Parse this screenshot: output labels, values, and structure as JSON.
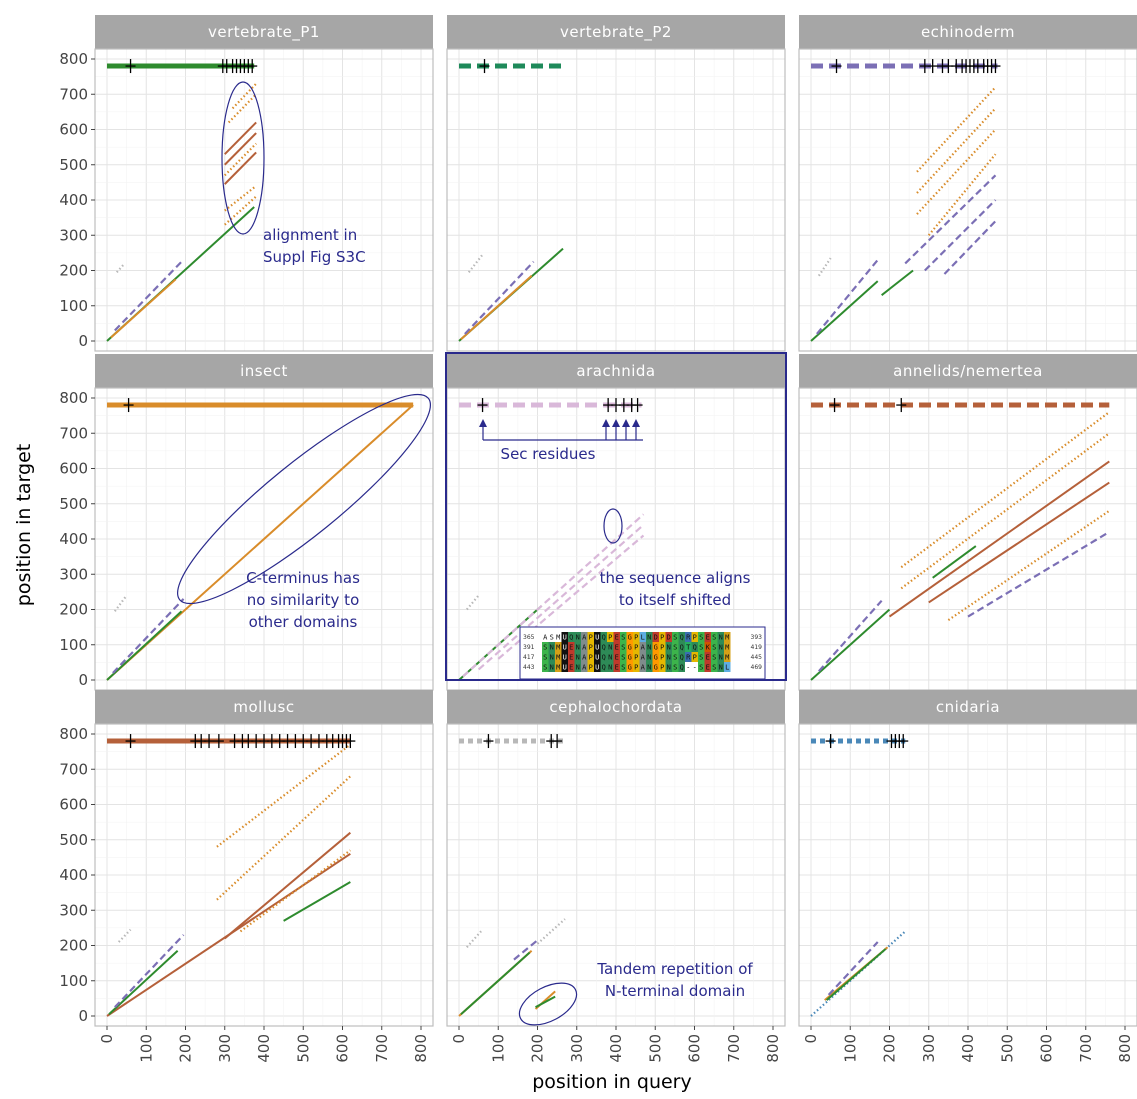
{
  "figure": {
    "xlabel": "position in query",
    "ylabel": "position in target"
  },
  "chart_data": {
    "type": "scatter",
    "description_of_marks": "dot-plot of local alignment segments (diagonal lines) of query vs target positions; row of dashed segment at top (y≈780) shows target protein with + marks for Sec residues",
    "xlim": [
      0,
      800
    ],
    "ylim": [
      0,
      800
    ],
    "x_ticks": [
      "0",
      "100",
      "200",
      "300",
      "400",
      "500",
      "600",
      "700",
      "800"
    ],
    "y_ticks": [
      "0",
      "100",
      "200",
      "300",
      "400",
      "500",
      "600",
      "700",
      "800"
    ],
    "grid": true,
    "colors": {
      "green": "#2e8b2e",
      "orange": "#d98c2a",
      "brown": "#b5603a",
      "purple": "#7b6fb5",
      "lightpurple": "#d9b8d9",
      "gray": "#b8b8b8",
      "blue": "#4a88b8",
      "darkgreen": "#1e8a5a",
      "annotation": "#2a2a8c",
      "strip": "#a6a6a6"
    },
    "panels": [
      {
        "name": "vertebrate_P1",
        "bar": {
          "x": [
            0,
            375
          ],
          "y": 780,
          "color": "green",
          "dash": "solid"
        },
        "sec_marks": [
          60,
          295,
          305,
          320,
          330,
          340,
          350,
          360,
          370
        ],
        "segments": [
          {
            "x": [
              0,
              375
            ],
            "y": [
              0,
              380
            ],
            "color": "green",
            "dash": "solid"
          },
          {
            "x": [
              10,
              175
            ],
            "y": [
              10,
              175
            ],
            "color": "orange",
            "dash": "solid"
          },
          {
            "x": [
              20,
              190
            ],
            "y": [
              30,
              225
            ],
            "color": "purple",
            "dash": "dashed"
          },
          {
            "x": [
              25,
              45
            ],
            "y": [
              195,
              220
            ],
            "color": "gray",
            "dash": "dotted"
          },
          {
            "x": [
              300,
              380
            ],
            "y": [
              330,
              410
            ],
            "color": "orange",
            "dash": "dotted"
          },
          {
            "x": [
              300,
              380
            ],
            "y": [
              370,
              440
            ],
            "color": "orange",
            "dash": "dotted"
          },
          {
            "x": [
              300,
              380
            ],
            "y": [
              445,
              535
            ],
            "color": "brown",
            "dash": "solid"
          },
          {
            "x": [
              300,
              380
            ],
            "y": [
              530,
              620
            ],
            "color": "brown",
            "dash": "solid"
          },
          {
            "x": [
              300,
              380
            ],
            "y": [
              500,
              590
            ],
            "color": "brown",
            "dash": "solid"
          },
          {
            "x": [
              300,
              380
            ],
            "y": [
              470,
              560
            ],
            "color": "orange",
            "dash": "dotted"
          },
          {
            "x": [
              310,
              380
            ],
            "y": [
              620,
              700
            ],
            "color": "orange",
            "dash": "dotted"
          },
          {
            "x": [
              320,
              380
            ],
            "y": [
              660,
              730
            ],
            "color": "orange",
            "dash": "dotted"
          }
        ]
      },
      {
        "name": "vertebrate_P2",
        "bar": {
          "x": [
            0,
            265
          ],
          "y": 780,
          "color": "darkgreen",
          "dash": "dashed"
        },
        "sec_marks": [
          65
        ],
        "segments": [
          {
            "x": [
              0,
              265
            ],
            "y": [
              0,
              262
            ],
            "color": "green",
            "dash": "solid"
          },
          {
            "x": [
              5,
              185
            ],
            "y": [
              5,
              185
            ],
            "color": "orange",
            "dash": "solid"
          },
          {
            "x": [
              15,
              190
            ],
            "y": [
              20,
              225
            ],
            "color": "purple",
            "dash": "dashed"
          },
          {
            "x": [
              25,
              60
            ],
            "y": [
              195,
              245
            ],
            "color": "gray",
            "dash": "dotted"
          }
        ]
      },
      {
        "name": "echinoderm",
        "bar": {
          "x": [
            0,
            475
          ],
          "y": 780,
          "color": "purple",
          "dash": "dashed"
        },
        "sec_marks": [
          65,
          290,
          310,
          335,
          350,
          370,
          385,
          395,
          405,
          415,
          425,
          440,
          450,
          460,
          470
        ],
        "segments": [
          {
            "x": [
              0,
              170
            ],
            "y": [
              0,
              170
            ],
            "color": "green",
            "dash": "solid"
          },
          {
            "x": [
              180,
              260
            ],
            "y": [
              130,
              200
            ],
            "color": "green",
            "dash": "solid"
          },
          {
            "x": [
              15,
              170
            ],
            "y": [
              20,
              230
            ],
            "color": "purple",
            "dash": "dashed"
          },
          {
            "x": [
              20,
              50
            ],
            "y": [
              185,
              235
            ],
            "color": "gray",
            "dash": "dotted"
          },
          {
            "x": [
              240,
              470
            ],
            "y": [
              220,
              470
            ],
            "color": "purple",
            "dash": "dashed"
          },
          {
            "x": [
              290,
              470
            ],
            "y": [
              200,
              400
            ],
            "color": "purple",
            "dash": "dashed"
          },
          {
            "x": [
              340,
              470
            ],
            "y": [
              190,
              340
            ],
            "color": "purple",
            "dash": "dashed"
          },
          {
            "x": [
              270,
              470
            ],
            "y": [
              480,
              720
            ],
            "color": "orange",
            "dash": "dotted"
          },
          {
            "x": [
              270,
              470
            ],
            "y": [
              420,
              660
            ],
            "color": "orange",
            "dash": "dotted"
          },
          {
            "x": [
              270,
              470
            ],
            "y": [
              360,
              600
            ],
            "color": "orange",
            "dash": "dotted"
          },
          {
            "x": [
              300,
              470
            ],
            "y": [
              300,
              530
            ],
            "color": "orange",
            "dash": "dotted"
          }
        ]
      },
      {
        "name": "insect",
        "bar": {
          "x": [
            0,
            780
          ],
          "y": 780,
          "color": "orange",
          "dash": "solid"
        },
        "sec_marks": [
          55
        ],
        "segments": [
          {
            "x": [
              0,
              780
            ],
            "y": [
              0,
              780
            ],
            "color": "orange",
            "dash": "solid"
          },
          {
            "x": [
              0,
              190
            ],
            "y": [
              0,
              195
            ],
            "color": "green",
            "dash": "solid"
          },
          {
            "x": [
              15,
              195
            ],
            "y": [
              20,
              230
            ],
            "color": "purple",
            "dash": "dashed"
          },
          {
            "x": [
              20,
              50
            ],
            "y": [
              195,
              240
            ],
            "color": "gray",
            "dash": "dotted"
          }
        ]
      },
      {
        "name": "arachnida",
        "bar": {
          "x": [
            0,
            465
          ],
          "y": 780,
          "color": "lightpurple",
          "dash": "dashed"
        },
        "sec_marks": [
          60,
          380,
          400,
          420,
          440,
          455
        ],
        "segments": [
          {
            "x": [
              0,
              210
            ],
            "y": [
              0,
              210
            ],
            "color": "green",
            "dash": "solid"
          },
          {
            "x": [
              10,
              470
            ],
            "y": [
              10,
              470
            ],
            "color": "lightpurple",
            "dash": "dashed"
          },
          {
            "x": [
              50,
              470
            ],
            "y": [
              30,
              440
            ],
            "color": "lightpurple",
            "dash": "dashed"
          },
          {
            "x": [
              100,
              470
            ],
            "y": [
              60,
              410
            ],
            "color": "lightpurple",
            "dash": "dashed"
          },
          {
            "x": [
              20,
              50
            ],
            "y": [
              200,
              240
            ],
            "color": "gray",
            "dash": "dotted"
          }
        ]
      },
      {
        "name": "annelids/nemertea",
        "bar": {
          "x": [
            0,
            760
          ],
          "y": 780,
          "color": "brown",
          "dash": "dashed"
        },
        "sec_marks": [
          60,
          230
        ],
        "segments": [
          {
            "x": [
              0,
              200
            ],
            "y": [
              0,
              200
            ],
            "color": "green",
            "dash": "solid"
          },
          {
            "x": [
              20,
              180
            ],
            "y": [
              25,
              225
            ],
            "color": "purple",
            "dash": "dashed"
          },
          {
            "x": [
              200,
              760
            ],
            "y": [
              180,
              620
            ],
            "color": "brown",
            "dash": "solid"
          },
          {
            "x": [
              230,
              760
            ],
            "y": [
              260,
              700
            ],
            "color": "orange",
            "dash": "dotted"
          },
          {
            "x": [
              230,
              760
            ],
            "y": [
              320,
              760
            ],
            "color": "orange",
            "dash": "dotted"
          },
          {
            "x": [
              350,
              760
            ],
            "y": [
              170,
              480
            ],
            "color": "orange",
            "dash": "dotted"
          },
          {
            "x": [
              300,
              760
            ],
            "y": [
              220,
              560
            ],
            "color": "brown",
            "dash": "solid"
          },
          {
            "x": [
              400,
              760
            ],
            "y": [
              180,
              420
            ],
            "color": "purple",
            "dash": "dashed"
          },
          {
            "x": [
              310,
              420
            ],
            "y": [
              290,
              380
            ],
            "color": "green",
            "dash": "solid"
          }
        ]
      },
      {
        "name": "mollusc",
        "bar": {
          "x": [
            0,
            620
          ],
          "y": 780,
          "color": "brown",
          "dash": "solid"
        },
        "sec_marks": [
          60,
          225,
          240,
          260,
          285,
          325,
          345,
          360,
          380,
          400,
          420,
          440,
          460,
          480,
          500,
          520,
          540,
          560,
          575,
          590,
          600,
          610,
          620
        ],
        "segments": [
          {
            "x": [
              0,
              620
            ],
            "y": [
              0,
              460
            ],
            "color": "brown",
            "dash": "solid"
          },
          {
            "x": [
              5,
              180
            ],
            "y": [
              5,
              185
            ],
            "color": "green",
            "dash": "solid"
          },
          {
            "x": [
              20,
              195
            ],
            "y": [
              25,
              230
            ],
            "color": "purple",
            "dash": "dashed"
          },
          {
            "x": [
              30,
              60
            ],
            "y": [
              210,
              245
            ],
            "color": "gray",
            "dash": "dotted"
          },
          {
            "x": [
              300,
              620
            ],
            "y": [
              220,
              520
            ],
            "color": "brown",
            "dash": "solid"
          },
          {
            "x": [
              280,
              620
            ],
            "y": [
              330,
              680
            ],
            "color": "orange",
            "dash": "dotted"
          },
          {
            "x": [
              280,
              620
            ],
            "y": [
              480,
              770
            ],
            "color": "orange",
            "dash": "dotted"
          },
          {
            "x": [
              340,
              620
            ],
            "y": [
              240,
              470
            ],
            "color": "orange",
            "dash": "dotted"
          },
          {
            "x": [
              450,
              620
            ],
            "y": [
              270,
              380
            ],
            "color": "green",
            "dash": "solid"
          }
        ]
      },
      {
        "name": "cephalochordata",
        "bar": {
          "x": [
            0,
            265
          ],
          "y": 780,
          "color": "gray",
          "dash": "dotted"
        },
        "sec_marks": [
          75,
          235,
          250
        ],
        "segments": [
          {
            "x": [
              0,
              185
            ],
            "y": [
              0,
              185
            ],
            "color": "orange",
            "dash": "solid"
          },
          {
            "x": [
              5,
              180
            ],
            "y": [
              5,
              180
            ],
            "color": "green",
            "dash": "solid"
          },
          {
            "x": [
              140,
              200
            ],
            "y": [
              160,
              215
            ],
            "color": "purple",
            "dash": "dashed"
          },
          {
            "x": [
              20,
              60
            ],
            "y": [
              195,
              245
            ],
            "color": "gray",
            "dash": "dotted"
          },
          {
            "x": [
              200,
              270
            ],
            "y": [
              205,
              275
            ],
            "color": "gray",
            "dash": "dotted"
          },
          {
            "x": [
              195,
              245
            ],
            "y": [
              20,
              70
            ],
            "color": "orange",
            "dash": "solid"
          },
          {
            "x": [
              195,
              245
            ],
            "y": [
              25,
              55
            ],
            "color": "green",
            "dash": "solid"
          }
        ]
      },
      {
        "name": "cnidaria",
        "bar": {
          "x": [
            0,
            240
          ],
          "y": 780,
          "color": "blue",
          "dash": "dotted"
        },
        "sec_marks": [
          50,
          205,
          215,
          225,
          235
        ],
        "segments": [
          {
            "x": [
              0,
              240
            ],
            "y": [
              0,
              240
            ],
            "color": "blue",
            "dash": "dotted"
          },
          {
            "x": [
              35,
              195
            ],
            "y": [
              45,
              195
            ],
            "color": "orange",
            "dash": "solid"
          },
          {
            "x": [
              40,
              190
            ],
            "y": [
              45,
              190
            ],
            "color": "green",
            "dash": "solid"
          },
          {
            "x": [
              45,
              170
            ],
            "y": [
              60,
              210
            ],
            "color": "purple",
            "dash": "dashed"
          }
        ]
      }
    ]
  },
  "annotations": {
    "p1_line1": "alignment in",
    "p1_line2": "Suppl Fig S3C",
    "insect_line1": "C-terminus has",
    "insect_line2": "no similarity to",
    "insect_line3": "other domains",
    "arach_sec": "Sec residues",
    "arach_line1": "the sequence aligns",
    "arach_line2": "to itself shifted",
    "ceph_line1": "Tandem repetition of",
    "ceph_line2": "N-terminal domain"
  },
  "alignment_inset": {
    "rows": [
      {
        "start": "365",
        "seq": "ASMUQNAPUQPESGPLNDPDSQRPSESNM",
        "end": "393"
      },
      {
        "start": "391",
        "seq": "SNMUENAPUQNESGPANGPNSQTQSKSNM",
        "end": "419"
      },
      {
        "start": "417",
        "seq": "SNMUENAPUQNESGPANGPNSQRPSESNM",
        "end": "445"
      },
      {
        "start": "443",
        "seq": "SNMUENAPUQNESGPANGPNSQ--SESNL",
        "end": "469"
      }
    ]
  }
}
